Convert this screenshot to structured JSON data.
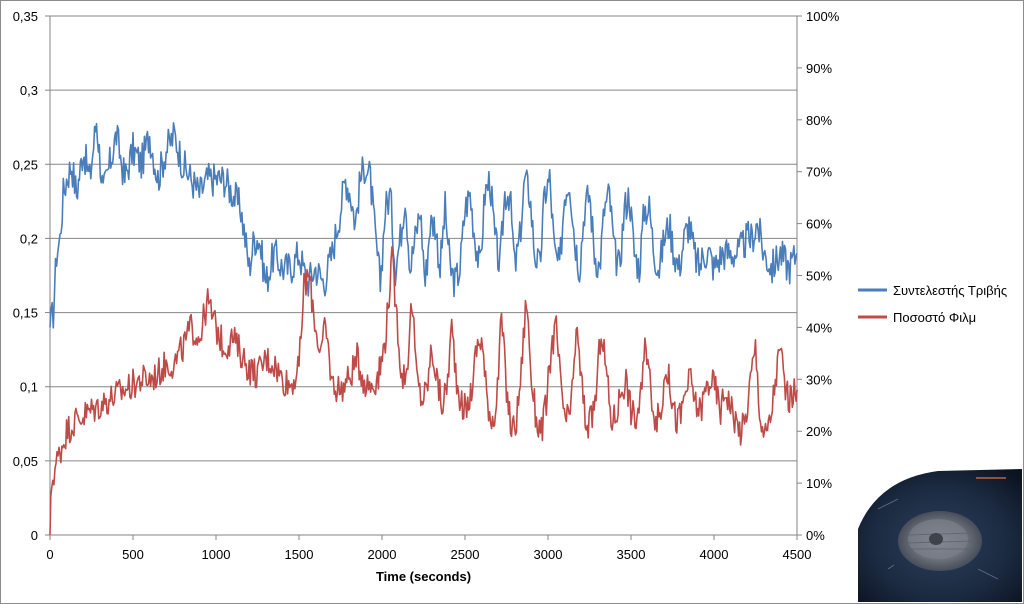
{
  "chart_data": {
    "type": "line",
    "title": "",
    "xlabel": "Time (seconds)",
    "ylabel": "",
    "xlim": [
      0,
      4500
    ],
    "ylim_left": [
      0,
      0.35
    ],
    "ylim_right": [
      0,
      1.0
    ],
    "x_ticks": [
      "0",
      "500",
      "1000",
      "1500",
      "2000",
      "2500",
      "3000",
      "3500",
      "4000",
      "4500"
    ],
    "y_left_ticks": [
      "0",
      "0,05",
      "0,1",
      "0,15",
      "0,2",
      "0,25",
      "0,3",
      "0,35"
    ],
    "y_right_ticks": [
      "0%",
      "10%",
      "20%",
      "30%",
      "40%",
      "50%",
      "60%",
      "70%",
      "80%",
      "90%",
      "100%"
    ],
    "grid": true,
    "legend_position": "right",
    "series": [
      {
        "name": "Συντελεστής Τριβής",
        "axis": "left",
        "color": "#4a7ebb",
        "x": [
          0,
          20,
          40,
          60,
          80,
          100,
          130,
          160,
          200,
          240,
          280,
          320,
          360,
          400,
          450,
          500,
          550,
          600,
          650,
          700,
          750,
          800,
          850,
          900,
          950,
          1000,
          1050,
          1100,
          1150,
          1200,
          1230,
          1260,
          1300,
          1350,
          1400,
          1450,
          1500,
          1550,
          1600,
          1650,
          1700,
          1750,
          1780,
          1810,
          1840,
          1870,
          1900,
          1930,
          1960,
          1990,
          2020,
          2050,
          2080,
          2110,
          2140,
          2170,
          2200,
          2230,
          2260,
          2290,
          2320,
          2350,
          2380,
          2410,
          2440,
          2470,
          2500,
          2530,
          2560,
          2590,
          2620,
          2650,
          2680,
          2710,
          2740,
          2770,
          2800,
          2830,
          2860,
          2890,
          2920,
          2950,
          2980,
          3010,
          3040,
          3070,
          3100,
          3130,
          3160,
          3190,
          3220,
          3250,
          3280,
          3310,
          3340,
          3370,
          3400,
          3430,
          3460,
          3490,
          3520,
          3550,
          3580,
          3610,
          3640,
          3670,
          3700,
          3730,
          3760,
          3790,
          3820,
          3850,
          3880,
          3910,
          3940,
          3970,
          4000,
          4050,
          4100,
          4150,
          4200,
          4230,
          4260,
          4300,
          4350,
          4400,
          4450,
          4500
        ],
        "values": [
          0.14,
          0.15,
          0.19,
          0.2,
          0.23,
          0.24,
          0.25,
          0.23,
          0.26,
          0.24,
          0.28,
          0.23,
          0.25,
          0.27,
          0.24,
          0.26,
          0.25,
          0.27,
          0.24,
          0.26,
          0.27,
          0.25,
          0.24,
          0.23,
          0.24,
          0.24,
          0.24,
          0.23,
          0.22,
          0.18,
          0.2,
          0.2,
          0.17,
          0.19,
          0.18,
          0.18,
          0.19,
          0.17,
          0.18,
          0.17,
          0.19,
          0.22,
          0.24,
          0.23,
          0.21,
          0.24,
          0.25,
          0.24,
          0.2,
          0.17,
          0.22,
          0.23,
          0.18,
          0.2,
          0.23,
          0.18,
          0.2,
          0.22,
          0.17,
          0.21,
          0.21,
          0.18,
          0.22,
          0.18,
          0.17,
          0.18,
          0.22,
          0.23,
          0.2,
          0.18,
          0.23,
          0.24,
          0.2,
          0.18,
          0.23,
          0.23,
          0.18,
          0.2,
          0.24,
          0.23,
          0.19,
          0.18,
          0.23,
          0.24,
          0.19,
          0.18,
          0.23,
          0.24,
          0.2,
          0.18,
          0.22,
          0.23,
          0.19,
          0.18,
          0.22,
          0.23,
          0.19,
          0.18,
          0.22,
          0.23,
          0.19,
          0.18,
          0.22,
          0.22,
          0.19,
          0.18,
          0.2,
          0.21,
          0.19,
          0.18,
          0.2,
          0.21,
          0.19,
          0.18,
          0.19,
          0.19,
          0.18,
          0.19,
          0.19,
          0.19,
          0.2,
          0.2,
          0.21,
          0.19,
          0.18,
          0.19,
          0.18,
          0.19
        ]
      },
      {
        "name": "Ποσοστό Φιλμ",
        "axis": "right",
        "color": "#be4b48",
        "x": [
          0,
          10,
          30,
          60,
          100,
          150,
          200,
          250,
          300,
          350,
          400,
          450,
          500,
          550,
          600,
          650,
          700,
          750,
          800,
          850,
          900,
          950,
          1000,
          1050,
          1100,
          1150,
          1200,
          1250,
          1300,
          1350,
          1400,
          1450,
          1500,
          1530,
          1560,
          1600,
          1630,
          1660,
          1700,
          1750,
          1800,
          1850,
          1900,
          1950,
          1990,
          2020,
          2060,
          2090,
          2120,
          2150,
          2180,
          2210,
          2240,
          2270,
          2300,
          2330,
          2360,
          2390,
          2420,
          2450,
          2480,
          2510,
          2540,
          2570,
          2600,
          2630,
          2660,
          2690,
          2720,
          2750,
          2780,
          2810,
          2840,
          2870,
          2900,
          2930,
          2960,
          2990,
          3020,
          3050,
          3080,
          3110,
          3140,
          3170,
          3200,
          3230,
          3260,
          3290,
          3320,
          3350,
          3380,
          3410,
          3440,
          3470,
          3500,
          3530,
          3560,
          3590,
          3620,
          3650,
          3680,
          3710,
          3740,
          3770,
          3800,
          3830,
          3860,
          3890,
          3920,
          3950,
          3980,
          4010,
          4040,
          4070,
          4100,
          4130,
          4160,
          4190,
          4220,
          4250,
          4280,
          4310,
          4340,
          4370,
          4400,
          4430,
          4460,
          4500
        ],
        "values": [
          0.0,
          0.1,
          0.13,
          0.16,
          0.2,
          0.22,
          0.23,
          0.24,
          0.25,
          0.26,
          0.27,
          0.28,
          0.29,
          0.3,
          0.3,
          0.31,
          0.33,
          0.33,
          0.36,
          0.4,
          0.38,
          0.45,
          0.4,
          0.36,
          0.38,
          0.35,
          0.32,
          0.31,
          0.34,
          0.33,
          0.3,
          0.29,
          0.32,
          0.48,
          0.5,
          0.4,
          0.35,
          0.4,
          0.29,
          0.28,
          0.3,
          0.34,
          0.29,
          0.29,
          0.32,
          0.38,
          0.53,
          0.42,
          0.3,
          0.32,
          0.45,
          0.3,
          0.26,
          0.28,
          0.36,
          0.3,
          0.25,
          0.28,
          0.4,
          0.3,
          0.25,
          0.24,
          0.28,
          0.36,
          0.38,
          0.27,
          0.22,
          0.25,
          0.42,
          0.28,
          0.2,
          0.22,
          0.32,
          0.46,
          0.3,
          0.22,
          0.2,
          0.25,
          0.36,
          0.4,
          0.27,
          0.22,
          0.24,
          0.4,
          0.3,
          0.21,
          0.22,
          0.27,
          0.4,
          0.32,
          0.22,
          0.23,
          0.28,
          0.3,
          0.24,
          0.22,
          0.27,
          0.37,
          0.28,
          0.22,
          0.23,
          0.33,
          0.28,
          0.22,
          0.23,
          0.28,
          0.3,
          0.25,
          0.24,
          0.28,
          0.3,
          0.28,
          0.24,
          0.28,
          0.25,
          0.22,
          0.2,
          0.22,
          0.3,
          0.36,
          0.22,
          0.19,
          0.22,
          0.3,
          0.36,
          0.28,
          0.26,
          0.28
        ]
      }
    ]
  },
  "inset_image": {
    "description_icon": "microscope-image-of-wear-scar"
  }
}
